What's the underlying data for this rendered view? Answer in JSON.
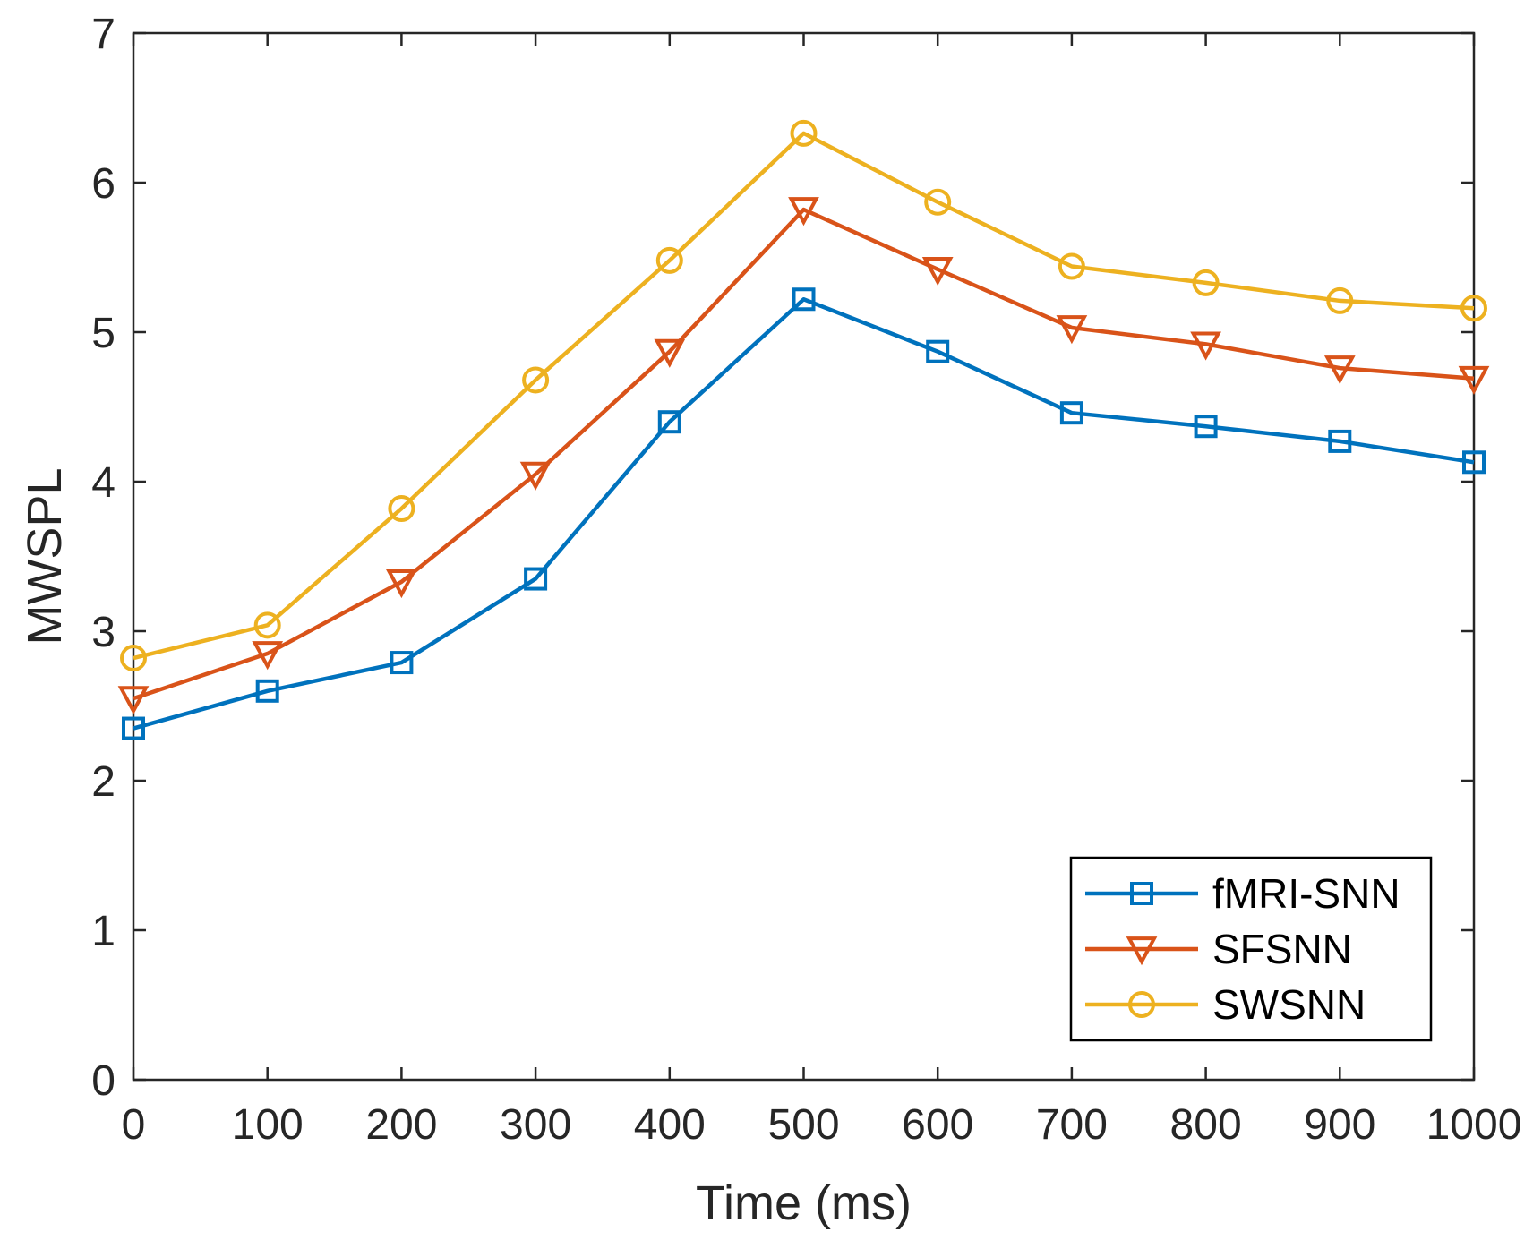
{
  "chart_data": {
    "type": "line",
    "title": "",
    "xlabel": "Time (ms)",
    "ylabel": "MWSPL",
    "xlim": [
      0,
      1000
    ],
    "ylim": [
      0,
      7
    ],
    "xticks": [
      0,
      100,
      200,
      300,
      400,
      500,
      600,
      700,
      800,
      900,
      1000
    ],
    "yticks": [
      0,
      1,
      2,
      3,
      4,
      5,
      6,
      7
    ],
    "xtick_labels": [
      "0",
      "100",
      "200",
      "300",
      "400",
      "500",
      "600",
      "700",
      "800",
      "900",
      "1000"
    ],
    "ytick_labels": [
      "0",
      "1",
      "2",
      "3",
      "4",
      "5",
      "6",
      "7"
    ],
    "grid": false,
    "legend_position": "bottom-right",
    "x": [
      0,
      100,
      200,
      300,
      400,
      500,
      600,
      700,
      800,
      900,
      1000
    ],
    "series": [
      {
        "name": "fMRI-SNN",
        "color": "#0072BD",
        "marker": "square",
        "values": [
          2.35,
          2.6,
          2.79,
          3.35,
          4.4,
          5.22,
          4.87,
          4.46,
          4.37,
          4.27,
          4.13
        ]
      },
      {
        "name": "SFSNN",
        "color": "#D95319",
        "marker": "triangle-down",
        "values": [
          2.55,
          2.85,
          3.33,
          4.05,
          4.87,
          5.82,
          5.42,
          5.03,
          4.92,
          4.76,
          4.69
        ]
      },
      {
        "name": "SWSNN",
        "color": "#EDB120",
        "marker": "circle",
        "values": [
          2.82,
          3.04,
          3.82,
          4.68,
          5.48,
          6.33,
          5.87,
          5.44,
          5.33,
          5.21,
          5.16
        ]
      }
    ]
  }
}
